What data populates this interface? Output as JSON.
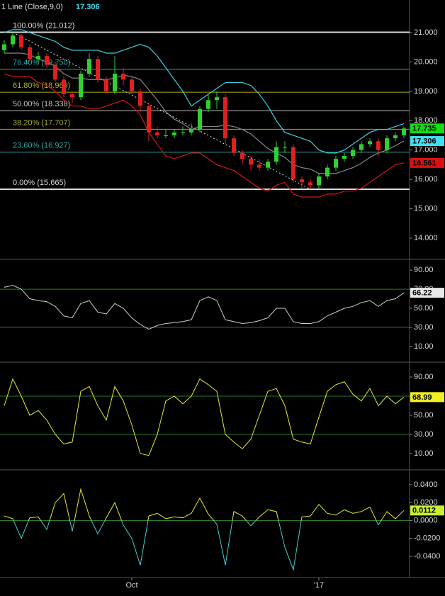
{
  "chart_data": [
    {
      "type": "candlestick",
      "title": "1 Line (Close,9,0)",
      "last_value": 17.306,
      "last_value_color": "#40e0f0",
      "up_color": "#30d030",
      "down_color": "#e02020",
      "open": [
        20.4,
        20.6,
        20.9,
        20.5,
        20.1,
        20.2,
        19.9,
        19.4,
        18.9,
        18.8,
        19.6,
        20.1,
        19.4,
        19.0,
        19.6,
        19.4,
        19.0,
        18.5,
        17.6,
        17.5,
        17.5,
        17.6,
        17.6,
        17.7,
        18.4,
        18.7,
        18.8,
        17.4,
        16.9,
        16.7,
        16.5,
        16.4,
        16.6,
        17.1,
        17.1,
        16.0,
        15.9,
        15.8,
        16.1,
        16.4,
        16.7,
        16.8,
        17.0,
        17.2,
        17.3,
        17.0,
        17.4,
        17.5
      ],
      "high": [
        20.75,
        21.012,
        20.95,
        20.6,
        20.35,
        20.3,
        20.0,
        19.5,
        19.0,
        19.7,
        20.3,
        20.2,
        19.5,
        20.2,
        19.8,
        19.5,
        19.1,
        18.6,
        17.8,
        17.7,
        17.7,
        17.8,
        17.9,
        18.5,
        18.9,
        19.0,
        18.9,
        17.5,
        17.0,
        16.8,
        16.7,
        16.7,
        17.3,
        17.3,
        17.2,
        16.1,
        16.0,
        16.2,
        16.5,
        16.8,
        16.9,
        17.1,
        17.3,
        17.4,
        17.4,
        17.5,
        17.6,
        17.8
      ],
      "low": [
        20.3,
        20.5,
        20.4,
        20.0,
        20.0,
        19.8,
        19.3,
        18.8,
        18.6,
        18.7,
        19.5,
        19.3,
        18.9,
        18.9,
        19.2,
        18.9,
        18.3,
        17.3,
        17.4,
        17.4,
        17.4,
        17.5,
        17.5,
        17.6,
        18.3,
        18.4,
        17.2,
        16.8,
        16.5,
        16.3,
        16.3,
        16.3,
        16.5,
        16.9,
        15.9,
        15.7,
        15.665,
        15.7,
        16.0,
        16.3,
        16.6,
        16.7,
        16.9,
        17.1,
        16.8,
        16.9,
        17.3,
        17.4
      ],
      "close": [
        20.6,
        20.9,
        20.5,
        20.1,
        20.2,
        19.9,
        19.4,
        18.9,
        18.8,
        19.6,
        20.1,
        19.4,
        19.0,
        19.6,
        19.4,
        19.0,
        18.5,
        17.6,
        17.5,
        17.5,
        17.6,
        17.6,
        17.7,
        18.4,
        18.7,
        18.8,
        17.4,
        16.9,
        16.7,
        16.5,
        16.4,
        16.6,
        17.1,
        17.1,
        16.0,
        15.9,
        15.8,
        16.1,
        16.4,
        16.7,
        16.8,
        17.0,
        17.2,
        17.3,
        17.0,
        17.4,
        17.5,
        17.735
      ],
      "series": [
        {
          "color": "#40d0e0",
          "values": [
            21.0,
            21.1,
            21.1,
            21.0,
            20.9,
            20.8,
            20.7,
            20.5,
            20.4,
            20.4,
            20.4,
            20.4,
            20.3,
            20.3,
            20.4,
            20.5,
            20.6,
            20.5,
            20.2,
            19.8,
            19.4,
            19.0,
            18.5,
            18.7,
            18.9,
            19.1,
            19.3,
            19.3,
            19.3,
            19.2,
            18.9,
            18.5,
            18.0,
            17.6,
            17.5,
            17.4,
            17.3,
            17.0,
            16.9,
            16.9,
            17.0,
            17.2,
            17.4,
            17.6,
            17.7,
            17.7,
            17.8,
            17.9
          ]
        },
        {
          "color": "#888888",
          "values": [
            20.3,
            20.3,
            20.3,
            20.25,
            20.1,
            20.0,
            19.85,
            19.6,
            19.45,
            19.45,
            19.4,
            19.4,
            19.4,
            19.45,
            19.55,
            19.5,
            19.4,
            19.05,
            18.7,
            18.3,
            18.05,
            17.9,
            17.7,
            17.8,
            17.8,
            17.8,
            17.85,
            17.8,
            17.7,
            17.55,
            17.3,
            17.05,
            16.9,
            16.75,
            16.5,
            16.4,
            16.35,
            16.2,
            16.2,
            16.2,
            16.3,
            16.4,
            16.55,
            16.75,
            16.9,
            17.0,
            17.15,
            17.306
          ]
        },
        {
          "color": "#d01818",
          "values": [
            19.6,
            19.5,
            19.5,
            19.5,
            19.3,
            19.2,
            19.0,
            18.7,
            18.5,
            18.5,
            18.4,
            18.4,
            18.5,
            18.6,
            18.7,
            18.5,
            18.2,
            17.6,
            17.2,
            16.8,
            16.7,
            16.8,
            16.9,
            16.9,
            16.7,
            16.5,
            16.4,
            16.3,
            16.1,
            15.9,
            15.7,
            15.6,
            15.8,
            15.9,
            15.5,
            15.4,
            15.4,
            15.4,
            15.5,
            15.5,
            15.6,
            15.6,
            15.7,
            15.9,
            16.1,
            16.3,
            16.5,
            16.561
          ]
        }
      ],
      "fib_levels": [
        {
          "label": "100.00% (21.012)",
          "value": 21.012,
          "color": "#d8d8d8"
        },
        {
          "label": "76.40% (19.750)",
          "value": 19.75,
          "color": "#30a8a8"
        },
        {
          "label": "61.80% (18.969)",
          "value": 18.969,
          "color": "#b0b020"
        },
        {
          "label": "50.00% (18.338)",
          "value": 18.338,
          "color": "#c0c0c0"
        },
        {
          "label": "38.20% (17.707)",
          "value": 17.707,
          "color": "#a8a830"
        },
        {
          "label": "23.60% (16.927)",
          "value": 16.927,
          "color": "#30a8a8"
        },
        {
          "label": "0.00% (15.665)",
          "value": 15.665,
          "color": "#d8d8d8"
        }
      ],
      "trendline": {
        "x": [
          1,
          36
        ],
        "y": [
          21.012,
          15.665
        ]
      },
      "markers": [
        {
          "value": 17.735,
          "color": "#10e010"
        },
        {
          "value": 17.306,
          "color": "#40e0f0"
        },
        {
          "value": 16.561,
          "color": "#e01010"
        }
      ],
      "ylim": [
        13.3,
        22.11
      ],
      "yticks": [
        {
          "value": 21,
          "label": "21.000"
        },
        {
          "value": 20,
          "label": "20.000"
        },
        {
          "value": 19,
          "label": "19.000"
        },
        {
          "value": 18,
          "label": "18.000"
        },
        {
          "value": 17,
          "label": "17.000"
        },
        {
          "value": 16,
          "label": "16.000"
        },
        {
          "value": 15,
          "label": "15.000"
        },
        {
          "value": 14,
          "label": "14.000"
        }
      ]
    },
    {
      "type": "line",
      "color": "#d0d0d0",
      "values": [
        72,
        74,
        70,
        60,
        58,
        57,
        52,
        42,
        40,
        55,
        58,
        46,
        44,
        55,
        50,
        40,
        33,
        28,
        32,
        34,
        35,
        36,
        38,
        58,
        62,
        58,
        38,
        36,
        34,
        35,
        37,
        40,
        50,
        50,
        36,
        34,
        34,
        36,
        42,
        46,
        50,
        52,
        56,
        58,
        52,
        58,
        60,
        66.22
      ],
      "hlines": [
        {
          "value": 70,
          "color": "#2a7a2a"
        },
        {
          "value": 30,
          "color": "#2a7a2a"
        }
      ],
      "markers": [
        {
          "value": 66.22,
          "color": "#e8e8e8"
        }
      ],
      "ylim": [
        -5.7,
        100.5
      ],
      "yticks": [
        {
          "value": 90,
          "label": "90.00"
        },
        {
          "value": 70,
          "label": "70.00"
        },
        {
          "value": 50,
          "label": "50.00"
        },
        {
          "value": 30,
          "label": "30.00"
        },
        {
          "value": 10,
          "label": "10.00"
        }
      ]
    },
    {
      "type": "line",
      "color": "#e8e830",
      "values": [
        60,
        88,
        70,
        50,
        55,
        45,
        30,
        20,
        22,
        75,
        80,
        60,
        45,
        80,
        65,
        40,
        10,
        8,
        30,
        65,
        70,
        62,
        70,
        88,
        82,
        75,
        30,
        22,
        15,
        25,
        50,
        75,
        78,
        60,
        25,
        22,
        20,
        48,
        75,
        82,
        85,
        72,
        65,
        78,
        60,
        70,
        62,
        68.99
      ],
      "hlines": [
        {
          "value": 70,
          "color": "#2a7a2a"
        },
        {
          "value": 30,
          "color": "#2a7a2a"
        }
      ],
      "markers": [
        {
          "value": 68.99,
          "color": "#f0f020"
        }
      ],
      "ylim": [
        -6.3,
        104.8
      ],
      "yticks": [
        {
          "value": 90,
          "label": "90.00"
        },
        {
          "value": 70,
          "label": "70.00"
        },
        {
          "value": 50,
          "label": "50.00"
        },
        {
          "value": 30,
          "label": "30.00"
        },
        {
          "value": 10,
          "label": "10.00"
        }
      ]
    },
    {
      "type": "line",
      "color": "#e8e830",
      "negative_color": "#40d0d0",
      "values": [
        0.005,
        0.002,
        -0.02,
        0.003,
        0.004,
        -0.01,
        0.02,
        0.03,
        -0.012,
        0.035,
        0.005,
        -0.015,
        0.003,
        0.02,
        -0.005,
        -0.02,
        -0.05,
        0.005,
        0.008,
        0.002,
        0.004,
        0.003,
        0.008,
        0.025,
        0.007,
        -0.004,
        -0.05,
        0.01,
        0.005,
        -0.006,
        0.004,
        0.012,
        0.01,
        -0.03,
        -0.055,
        0.004,
        0.005,
        0.018,
        0.008,
        0.006,
        0.012,
        0.008,
        0.01,
        0.015,
        -0.005,
        0.01,
        0.002,
        0.0112
      ],
      "hlines": [
        {
          "value": 0,
          "color": "#2a7a2a"
        }
      ],
      "markers": [
        {
          "value": 0.0112,
          "color": "#c8f030"
        }
      ],
      "ylim": [
        -0.0638,
        0.0558
      ],
      "yticks": [
        {
          "value": 0.04,
          "label": "0.0400"
        },
        {
          "value": 0.02,
          "label": "0.0200"
        },
        {
          "value": 0,
          "label": "0.0000"
        },
        {
          "value": -0.02,
          "label": "-0.0200"
        },
        {
          "value": -0.04,
          "label": "-0.0400"
        }
      ],
      "categories": [
        null,
        null,
        null,
        null,
        null,
        null,
        null,
        null,
        null,
        null,
        null,
        null,
        null,
        null,
        null,
        "Oct",
        null,
        null,
        null,
        null,
        null,
        null,
        null,
        null,
        null,
        null,
        null,
        null,
        null,
        null,
        null,
        null,
        null,
        null,
        null,
        null,
        null,
        "'17",
        null,
        null,
        null,
        null,
        null,
        null,
        null,
        null,
        null,
        null
      ]
    }
  ]
}
